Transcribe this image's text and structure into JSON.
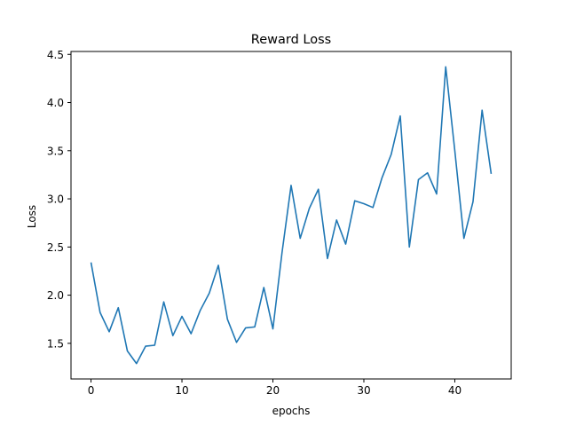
{
  "chart_data": {
    "type": "line",
    "title": "Reward Loss",
    "xlabel": "epochs",
    "ylabel": "Loss",
    "xlim": [
      -2.2,
      46.2
    ],
    "ylim": [
      1.13,
      4.53
    ],
    "xticks": [
      0,
      10,
      20,
      30,
      40
    ],
    "yticks": [
      1.5,
      2.0,
      2.5,
      3.0,
      3.5,
      4.0,
      4.5
    ],
    "ytick_labels": [
      "1.5",
      "2.0",
      "2.5",
      "3.0",
      "3.5",
      "4.0",
      "4.5"
    ],
    "grid": false,
    "series": [
      {
        "color": "#1f77b4",
        "x": [
          0,
          1,
          2,
          3,
          4,
          5,
          6,
          7,
          8,
          9,
          10,
          11,
          12,
          13,
          14,
          15,
          16,
          17,
          18,
          19,
          20,
          21,
          22,
          23,
          24,
          25,
          26,
          27,
          28,
          29,
          30,
          31,
          32,
          33,
          34,
          35,
          36,
          37,
          38,
          39,
          40,
          41,
          42,
          43,
          44
        ],
        "values": [
          2.34,
          1.82,
          1.62,
          1.87,
          1.42,
          1.29,
          1.47,
          1.48,
          1.93,
          1.58,
          1.78,
          1.6,
          1.84,
          2.02,
          2.31,
          1.75,
          1.51,
          1.66,
          1.67,
          2.08,
          1.65,
          2.44,
          3.14,
          2.59,
          2.9,
          3.1,
          2.38,
          2.78,
          2.53,
          2.98,
          2.95,
          2.91,
          3.22,
          3.46,
          3.86,
          2.5,
          3.2,
          3.27,
          3.05,
          4.37,
          3.5,
          2.59,
          2.97,
          3.92,
          3.26
        ]
      }
    ]
  }
}
